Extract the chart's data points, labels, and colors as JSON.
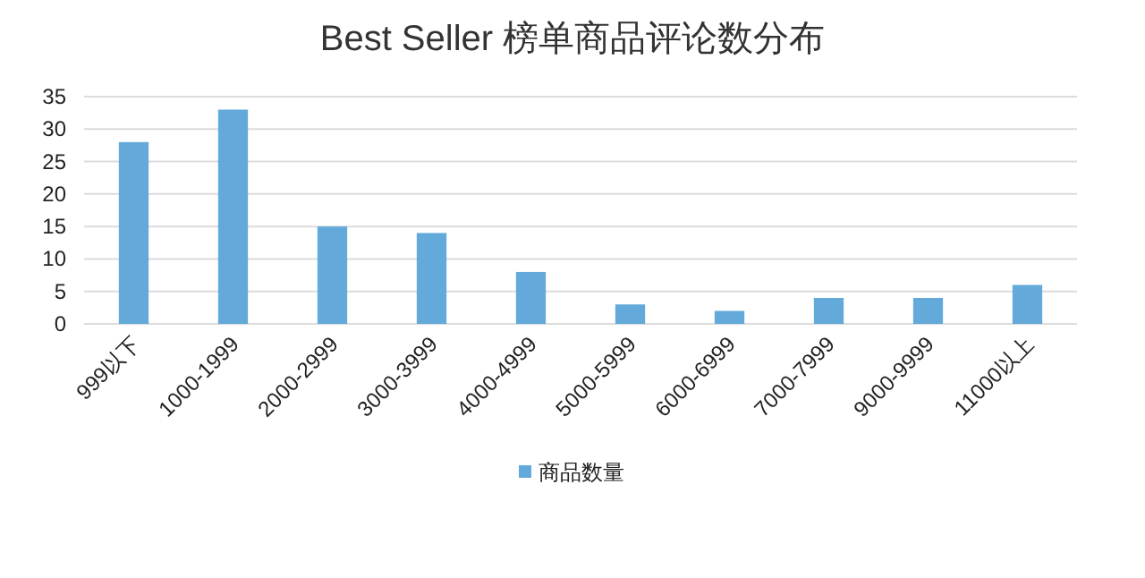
{
  "chart_data": {
    "type": "bar",
    "title": "Best Seller 榜单商品评论数分布",
    "categories": [
      "999以下",
      "1000-1999",
      "2000-2999",
      "3000-3999",
      "4000-4999",
      "5000-5999",
      "6000-6999",
      "7000-7999",
      "9000-9999",
      "11000以上"
    ],
    "series": [
      {
        "name": "商品数量",
        "color": "#63aadb",
        "values": [
          28,
          33,
          15,
          14,
          8,
          3,
          2,
          4,
          4,
          6
        ]
      }
    ],
    "ylim": [
      0,
      35
    ],
    "yticks": [
      0,
      5,
      10,
      15,
      20,
      25,
      30,
      35
    ],
    "grid": "y",
    "legend": "bottom"
  }
}
